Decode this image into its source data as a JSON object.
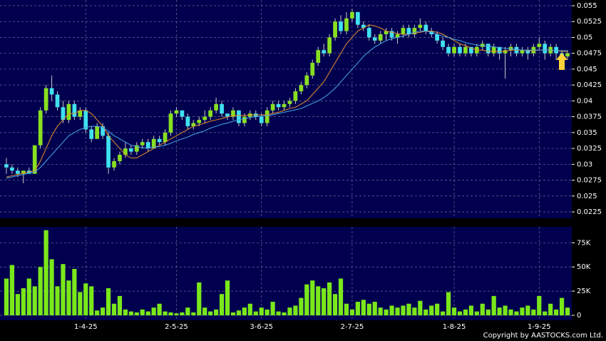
{
  "chart_data": [
    {
      "type": "candlestick",
      "up_color": "#88e020",
      "down_color": "#40e0f0",
      "ohlc": [
        [
          0.03,
          0.031,
          0.0285,
          0.0295
        ],
        [
          0.0295,
          0.03,
          0.0285,
          0.029
        ],
        [
          0.029,
          0.0295,
          0.028,
          0.0285
        ],
        [
          0.0285,
          0.029,
          0.027,
          0.029
        ],
        [
          0.029,
          0.0295,
          0.0285,
          0.0285
        ],
        [
          0.0285,
          0.033,
          0.0285,
          0.033
        ],
        [
          0.033,
          0.039,
          0.0325,
          0.0385
        ],
        [
          0.0385,
          0.0425,
          0.038,
          0.042
        ],
        [
          0.042,
          0.044,
          0.04,
          0.041
        ],
        [
          0.041,
          0.0415,
          0.0385,
          0.039
        ],
        [
          0.039,
          0.04,
          0.0365,
          0.037
        ],
        [
          0.037,
          0.04,
          0.0365,
          0.0395
        ],
        [
          0.0395,
          0.04,
          0.037,
          0.0375
        ],
        [
          0.0375,
          0.039,
          0.037,
          0.0385
        ],
        [
          0.0385,
          0.039,
          0.035,
          0.0355
        ],
        [
          0.0355,
          0.036,
          0.0335,
          0.034
        ],
        [
          0.034,
          0.0365,
          0.034,
          0.036
        ],
        [
          0.036,
          0.0365,
          0.034,
          0.0345
        ],
        [
          0.0345,
          0.035,
          0.0285,
          0.0295
        ],
        [
          0.0295,
          0.031,
          0.029,
          0.0305
        ],
        [
          0.0305,
          0.032,
          0.03,
          0.0315
        ],
        [
          0.0315,
          0.0335,
          0.031,
          0.0325
        ],
        [
          0.0325,
          0.033,
          0.0315,
          0.032
        ],
        [
          0.032,
          0.0335,
          0.0315,
          0.033
        ],
        [
          0.033,
          0.034,
          0.0325,
          0.0335
        ],
        [
          0.0335,
          0.034,
          0.032,
          0.0325
        ],
        [
          0.0325,
          0.0345,
          0.0325,
          0.034
        ],
        [
          0.034,
          0.0345,
          0.033,
          0.0335
        ],
        [
          0.0335,
          0.0355,
          0.033,
          0.035
        ],
        [
          0.035,
          0.0385,
          0.0345,
          0.038
        ],
        [
          0.038,
          0.039,
          0.0375,
          0.0385
        ],
        [
          0.0385,
          0.0385,
          0.037,
          0.0375
        ],
        [
          0.0375,
          0.038,
          0.0355,
          0.036
        ],
        [
          0.036,
          0.037,
          0.0355,
          0.0365
        ],
        [
          0.0365,
          0.0375,
          0.036,
          0.037
        ],
        [
          0.037,
          0.0385,
          0.0365,
          0.0375
        ],
        [
          0.0375,
          0.039,
          0.037,
          0.0385
        ],
        [
          0.0385,
          0.0405,
          0.038,
          0.0395
        ],
        [
          0.0395,
          0.04,
          0.0375,
          0.038
        ],
        [
          0.038,
          0.038,
          0.037,
          0.0375
        ],
        [
          0.0375,
          0.039,
          0.037,
          0.0385
        ],
        [
          0.0385,
          0.0385,
          0.036,
          0.0365
        ],
        [
          0.0365,
          0.038,
          0.036,
          0.0375
        ],
        [
          0.0375,
          0.0385,
          0.037,
          0.038
        ],
        [
          0.038,
          0.0385,
          0.037,
          0.0375
        ],
        [
          0.0375,
          0.038,
          0.036,
          0.0365
        ],
        [
          0.0365,
          0.039,
          0.036,
          0.0385
        ],
        [
          0.0385,
          0.04,
          0.038,
          0.0395
        ],
        [
          0.0395,
          0.04,
          0.0385,
          0.039
        ],
        [
          0.039,
          0.04,
          0.0385,
          0.0395
        ],
        [
          0.0395,
          0.0405,
          0.039,
          0.04
        ],
        [
          0.04,
          0.042,
          0.0395,
          0.0415
        ],
        [
          0.0415,
          0.043,
          0.041,
          0.0425
        ],
        [
          0.0425,
          0.0445,
          0.042,
          0.044
        ],
        [
          0.044,
          0.0465,
          0.0435,
          0.046
        ],
        [
          0.046,
          0.0485,
          0.0455,
          0.048
        ],
        [
          0.048,
          0.049,
          0.047,
          0.0475
        ],
        [
          0.0475,
          0.0505,
          0.047,
          0.05
        ],
        [
          0.05,
          0.053,
          0.0495,
          0.0525
        ],
        [
          0.0525,
          0.0535,
          0.0505,
          0.051
        ],
        [
          0.051,
          0.054,
          0.0505,
          0.053
        ],
        [
          0.053,
          0.0545,
          0.0525,
          0.054
        ],
        [
          0.054,
          0.054,
          0.0515,
          0.052
        ],
        [
          0.052,
          0.0525,
          0.051,
          0.0515
        ],
        [
          0.0515,
          0.052,
          0.0495,
          0.05
        ],
        [
          0.05,
          0.0505,
          0.049,
          0.0495
        ],
        [
          0.0495,
          0.051,
          0.049,
          0.0505
        ],
        [
          0.0505,
          0.0515,
          0.0495,
          0.051
        ],
        [
          0.051,
          0.0515,
          0.0495,
          0.05
        ],
        [
          0.05,
          0.051,
          0.049,
          0.0505
        ],
        [
          0.0505,
          0.052,
          0.05,
          0.0515
        ],
        [
          0.0515,
          0.052,
          0.05,
          0.0505
        ],
        [
          0.0505,
          0.052,
          0.05,
          0.0515
        ],
        [
          0.0515,
          0.053,
          0.051,
          0.052
        ],
        [
          0.052,
          0.0525,
          0.0505,
          0.051
        ],
        [
          0.051,
          0.0515,
          0.05,
          0.0505
        ],
        [
          0.0505,
          0.051,
          0.049,
          0.0495
        ],
        [
          0.0495,
          0.05,
          0.048,
          0.0485
        ],
        [
          0.0485,
          0.049,
          0.047,
          0.0475
        ],
        [
          0.0475,
          0.049,
          0.047,
          0.0485
        ],
        [
          0.0485,
          0.049,
          0.047,
          0.0475
        ],
        [
          0.0475,
          0.049,
          0.047,
          0.0485
        ],
        [
          0.0485,
          0.0485,
          0.047,
          0.0475
        ],
        [
          0.0475,
          0.049,
          0.047,
          0.0485
        ],
        [
          0.0485,
          0.0495,
          0.048,
          0.049
        ],
        [
          0.049,
          0.049,
          0.047,
          0.0475
        ],
        [
          0.0475,
          0.049,
          0.047,
          0.0485
        ],
        [
          0.0485,
          0.0485,
          0.0465,
          0.0475
        ],
        [
          0.0475,
          0.0485,
          0.0435,
          0.048
        ],
        [
          0.048,
          0.049,
          0.047,
          0.0485
        ],
        [
          0.0485,
          0.049,
          0.047,
          0.0475
        ],
        [
          0.0475,
          0.0485,
          0.047,
          0.048
        ],
        [
          0.048,
          0.0485,
          0.0465,
          0.0475
        ],
        [
          0.0475,
          0.049,
          0.047,
          0.0485
        ],
        [
          0.0485,
          0.05,
          0.048,
          0.049
        ],
        [
          0.049,
          0.0495,
          0.0465,
          0.0475
        ],
        [
          0.0475,
          0.049,
          0.047,
          0.0485
        ],
        [
          0.0485,
          0.049,
          0.0465,
          0.0475
        ],
        [
          0.0475,
          0.048,
          0.046,
          0.047
        ],
        [
          0.047,
          0.048,
          0.0465,
          0.0475
        ]
      ],
      "series": [
        {
          "color": "#e8902a",
          "values": [
            0.028,
            0.0282,
            0.0284,
            0.0286,
            0.0288,
            0.029,
            0.0305,
            0.0325,
            0.0345,
            0.036,
            0.037,
            0.038,
            0.038,
            0.0385,
            0.0385,
            0.038,
            0.037,
            0.036,
            0.0345,
            0.0335,
            0.0325,
            0.0315,
            0.031,
            0.031,
            0.0315,
            0.032,
            0.0325,
            0.033,
            0.0335,
            0.034,
            0.0345,
            0.035,
            0.0355,
            0.036,
            0.0362,
            0.0365,
            0.0368,
            0.037,
            0.0372,
            0.0375,
            0.0377,
            0.0377,
            0.0377,
            0.0378,
            0.0378,
            0.0378,
            0.0378,
            0.038,
            0.0382,
            0.0385,
            0.0388,
            0.039,
            0.0395,
            0.04,
            0.041,
            0.042,
            0.043,
            0.0445,
            0.046,
            0.0475,
            0.049,
            0.05,
            0.051,
            0.0515,
            0.052,
            0.0518,
            0.0515,
            0.051,
            0.0508,
            0.0506,
            0.0505,
            0.0505,
            0.0507,
            0.0508,
            0.051,
            0.051,
            0.0508,
            0.0505,
            0.05,
            0.0495,
            0.049,
            0.0487,
            0.0483,
            0.048,
            0.048,
            0.0478,
            0.0478,
            0.0478,
            0.0478,
            0.048,
            0.048,
            0.048,
            0.0479,
            0.0479,
            0.048,
            0.048,
            0.048,
            0.0479,
            0.0478,
            0.0478
          ]
        },
        {
          "color": "#4aa8e8",
          "values": [
            0.0278,
            0.028,
            0.0282,
            0.0284,
            0.0286,
            0.0288,
            0.0295,
            0.0305,
            0.0315,
            0.0325,
            0.0335,
            0.0345,
            0.035,
            0.0355,
            0.0358,
            0.036,
            0.036,
            0.0358,
            0.0352,
            0.0345,
            0.034,
            0.0335,
            0.033,
            0.0328,
            0.0326,
            0.0326,
            0.0327,
            0.0328,
            0.033,
            0.0333,
            0.0337,
            0.034,
            0.0343,
            0.0347,
            0.035,
            0.0353,
            0.0357,
            0.036,
            0.0363,
            0.0365,
            0.0368,
            0.037,
            0.0372,
            0.0374,
            0.0375,
            0.0376,
            0.0377,
            0.0378,
            0.038,
            0.0382,
            0.0384,
            0.0386,
            0.0388,
            0.0392,
            0.0396,
            0.04,
            0.0405,
            0.0412,
            0.042,
            0.043,
            0.044,
            0.045,
            0.046,
            0.047,
            0.0478,
            0.0485,
            0.049,
            0.0495,
            0.0498,
            0.05,
            0.0502,
            0.0505,
            0.0508,
            0.051,
            0.051,
            0.0508,
            0.0505,
            0.0502,
            0.05,
            0.0497,
            0.0495,
            0.0492,
            0.049,
            0.0488,
            0.0487,
            0.0486,
            0.0485,
            0.0484,
            0.0483,
            0.0482,
            0.0481,
            0.048,
            0.048,
            0.048,
            0.048,
            0.048,
            0.048,
            0.0479,
            0.0479,
            0.0479
          ]
        }
      ],
      "ylim": [
        0.0216,
        0.0559
      ],
      "yticks": [
        0.0225,
        0.025,
        0.0275,
        0.03,
        0.0325,
        0.035,
        0.0375,
        0.04,
        0.0425,
        0.045,
        0.0475,
        0.05,
        0.0525,
        0.055
      ],
      "grid": true
    },
    {
      "type": "bar",
      "color": "#7ae81a",
      "categories": [
        null,
        null,
        null,
        null,
        null,
        null,
        null,
        null,
        null,
        null,
        null,
        null,
        null,
        null,
        "1-4-25",
        null,
        null,
        null,
        null,
        null,
        null,
        null,
        null,
        null,
        null,
        null,
        null,
        null,
        null,
        null,
        "2-5-25",
        null,
        null,
        null,
        null,
        null,
        null,
        null,
        null,
        null,
        null,
        null,
        null,
        null,
        null,
        "3-6-25",
        null,
        null,
        null,
        null,
        null,
        null,
        null,
        null,
        null,
        null,
        null,
        null,
        null,
        null,
        null,
        "2-7-25",
        null,
        null,
        null,
        null,
        null,
        null,
        null,
        null,
        null,
        null,
        null,
        null,
        null,
        null,
        null,
        null,
        null,
        "1-8-25",
        null,
        null,
        null,
        null,
        null,
        null,
        null,
        null,
        null,
        null,
        null,
        null,
        null,
        null,
        "1-9-25",
        null,
        null,
        null,
        null,
        null
      ],
      "values": [
        38000,
        52000,
        22000,
        28000,
        38000,
        30000,
        50000,
        88000,
        58000,
        30000,
        53000,
        36000,
        48000,
        24000,
        33000,
        30000,
        5000,
        8000,
        28000,
        12000,
        20000,
        6000,
        4000,
        3000,
        6000,
        4000,
        8000,
        12000,
        4000,
        3000,
        2000,
        3000,
        8000,
        3000,
        34000,
        8000,
        4000,
        6000,
        22000,
        36000,
        3000,
        5000,
        8000,
        12000,
        4000,
        8000,
        6000,
        14000,
        4000,
        3000,
        8000,
        10000,
        18000,
        32000,
        36000,
        30000,
        28000,
        34000,
        22000,
        38000,
        12000,
        6000,
        14000,
        16000,
        12000,
        14000,
        8000,
        6000,
        10000,
        8000,
        10000,
        12000,
        8000,
        15000,
        6000,
        10000,
        12000,
        4000,
        24000,
        8000,
        4000,
        6000,
        10000,
        4000,
        12000,
        6000,
        20000,
        8000,
        10000,
        6000,
        4000,
        8000,
        10000,
        6000,
        20000,
        4000,
        12000,
        6000,
        18000,
        8000
      ],
      "ylim": [
        0,
        90000
      ],
      "yticks": [
        0,
        {
          "value": 25000,
          "label": "25K"
        },
        {
          "value": 50000,
          "label": "50K"
        },
        {
          "value": 75000,
          "label": "75K"
        }
      ],
      "grid": true
    }
  ],
  "copyright": "Copyright by AASTOCKS.com Ltd."
}
